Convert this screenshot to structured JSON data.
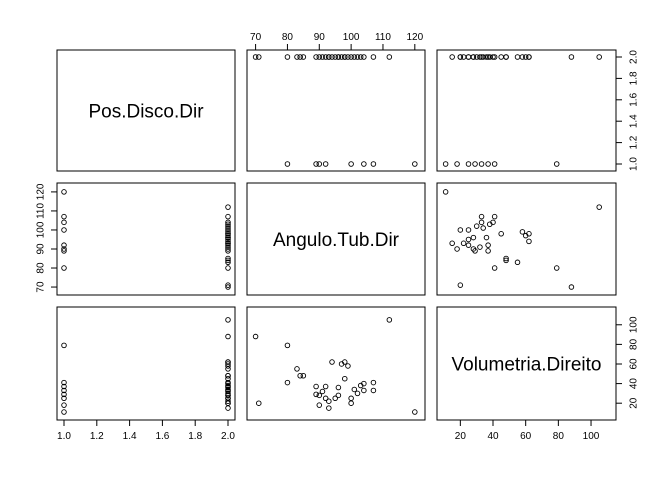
{
  "chart_data": {
    "type": "scatter",
    "subtype": "scatterplot-matrix",
    "variables": [
      "Pos.Disco.Dir",
      "Angulo.Tub.Dir",
      "Volumetria.Direito"
    ],
    "ranges": {
      "Pos.Disco.Dir": [
        1,
        2
      ],
      "Angulo.Tub.Dir": [
        69.5,
        121
      ],
      "Volumetria.Direito": [
        10,
        111
      ]
    },
    "ticks": {
      "Pos.Disco.Dir": [
        "1.0",
        "1.2",
        "1.4",
        "1.6",
        "1.8",
        "2.0"
      ],
      "Angulo.Tub.Dir": [
        "70",
        "80",
        "90",
        "100",
        "110",
        "120"
      ],
      "Volumetria.Direito": [
        "20",
        "40",
        "60",
        "80",
        "100"
      ]
    },
    "data_group1": {
      "Pos.Disco.Dir": 1,
      "Angulo.Tub.Dir": [
        120,
        80,
        89,
        90,
        92,
        100,
        104,
        107
      ],
      "Volumetria.Direito": [
        11,
        79,
        29,
        18,
        37,
        25,
        33,
        41
      ]
    },
    "data_group2": {
      "Pos.Disco.Dir": 2,
      "Angulo.Tub.Dir": [
        70,
        71,
        80,
        83,
        84,
        89,
        91,
        92,
        93,
        94,
        95,
        96,
        97,
        98,
        99,
        100,
        101,
        102,
        104,
        107,
        112,
        98,
        93,
        90,
        103,
        96,
        85
      ],
      "Volumetria.Direito": [
        88,
        20,
        41,
        55,
        48,
        37,
        32,
        25,
        15,
        62,
        25,
        36,
        60,
        62,
        58,
        20,
        34,
        30,
        40,
        33,
        105,
        45,
        22,
        28,
        38,
        28,
        48
      ]
    },
    "grid": false,
    "legend": "none"
  }
}
